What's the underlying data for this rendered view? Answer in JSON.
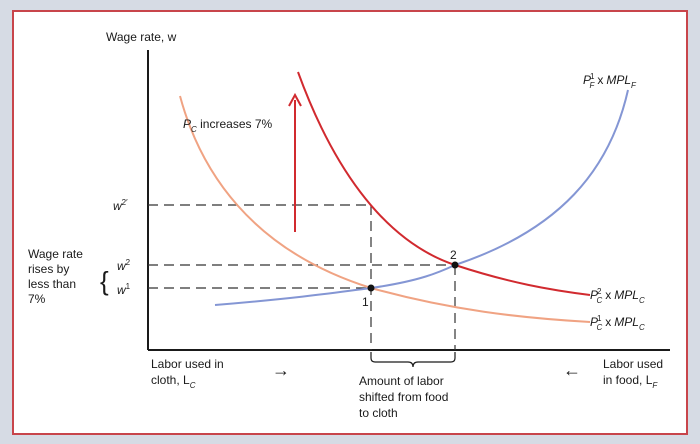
{
  "colors": {
    "outer_background": "#d6dbe4",
    "panel_border": "#c8454b",
    "panel_background": "#ffffff",
    "axis": "#1a1a1a",
    "demand_after": "#d12a2f",
    "demand_before": "#f0a383",
    "food_curve": "#8496d4",
    "guide": "#333333"
  },
  "axes": {
    "y_title": "Wage rate, w",
    "x_left_line1": "Labor used in",
    "x_left_line2_text": "cloth, L",
    "x_left_line2_sub": "C",
    "x_right_line1": "Labor used",
    "x_right_line2_text": "in food, L",
    "x_right_line2_sub": "F",
    "arrow_right": "→",
    "arrow_left": "←"
  },
  "wages": {
    "w2prime_base": "w",
    "w2prime_sup": "2′",
    "w2_base": "w",
    "w2_sup": "2",
    "w1_base": "w",
    "w1_sup": "1"
  },
  "annotation": {
    "line1": "Wage rate",
    "line2": "rises by",
    "line3": "less than",
    "line4": "7%",
    "brace": "{"
  },
  "price_label": {
    "p": "P",
    "sub": "C",
    "rest": " increases 7%"
  },
  "curves": {
    "food": {
      "p": "P",
      "sup": "1",
      "sub": "F",
      "x": "x",
      "mp": "MPL",
      "mpsub": "F"
    },
    "cloth_after": {
      "p": "P",
      "sup": "2",
      "sub": "C",
      "x": "x",
      "mp": "MPL",
      "mpsub": "C"
    },
    "cloth_before": {
      "p": "P",
      "sup": "1",
      "sub": "C",
      "x": "x",
      "mp": "MPL",
      "mpsub": "C"
    }
  },
  "points": {
    "eq1": "1",
    "eq2": "2"
  },
  "shift_label": {
    "line1": "Amount of labor",
    "line2": "shifted from food",
    "line3": "to cloth"
  }
}
